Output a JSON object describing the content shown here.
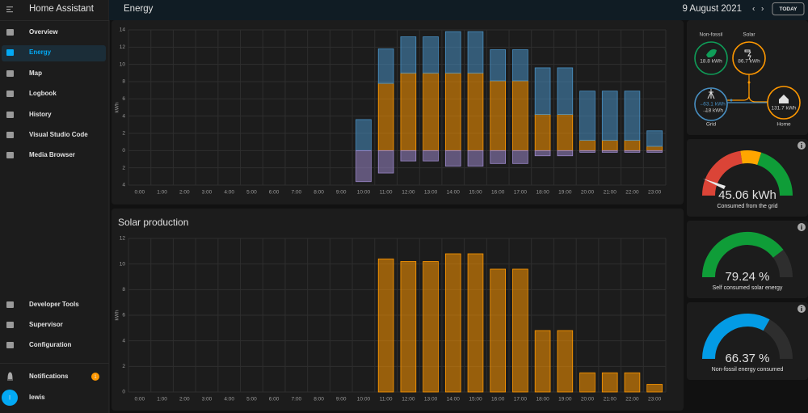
{
  "sidebar": {
    "title": "Home Assistant",
    "items": [
      "Overview",
      "Energy",
      "Map",
      "Logbook",
      "History",
      "Visual Studio Code",
      "Media Browser"
    ],
    "bottom_items": [
      "Developer Tools",
      "Supervisor",
      "Configuration"
    ],
    "notifications": "Notifications",
    "notification_count": 1,
    "user": "lewis",
    "avatar": "l"
  },
  "header": {
    "title": "Energy",
    "date": "9 August 2021",
    "today_button": "TODAY"
  },
  "usage_chart": {
    "type": "bar",
    "stacked": true,
    "y_label": "kWh",
    "categories": [
      "0:00",
      "1:00",
      "2:00",
      "3:00",
      "4:00",
      "5:00",
      "6:00",
      "7:00",
      "8:00",
      "9:00",
      "10:00",
      "11:00",
      "12:00",
      "13:00",
      "14:00",
      "15:00",
      "16:00",
      "17:00",
      "18:00",
      "19:00",
      "20:00",
      "21:00",
      "22:00",
      "23:00"
    ],
    "series": [
      {
        "color": "#ff9800",
        "values": [
          0,
          0,
          0,
          0,
          0,
          0,
          0,
          0,
          0,
          0,
          0,
          7.8,
          9.0,
          9.0,
          9.0,
          9.0,
          8.1,
          8.1,
          4.2,
          4.2,
          1.2,
          1.2,
          1.2,
          0.5
        ]
      },
      {
        "color": "#488fc2",
        "values": [
          0,
          0,
          0,
          0,
          0,
          0,
          0,
          0,
          0,
          0,
          3.6,
          4.0,
          4.2,
          4.2,
          4.8,
          4.8,
          3.6,
          3.6,
          5.4,
          5.4,
          5.7,
          5.7,
          5.7,
          1.8
        ]
      },
      {
        "color": "#9b87c9",
        "values": [
          0,
          0,
          0,
          0,
          0,
          0,
          0,
          0,
          0,
          0,
          -3.6,
          -2.6,
          -1.2,
          -1.2,
          -1.8,
          -1.8,
          -1.5,
          -1.5,
          -0.6,
          -0.6,
          -0.2,
          -0.2,
          -0.2,
          -0.2
        ]
      }
    ],
    "ylim": [
      -4,
      14
    ],
    "yticks": [
      14,
      12,
      10,
      8,
      6,
      4,
      2,
      0,
      {
        "value": -2,
        "label": "2"
      },
      {
        "value": -4,
        "label": "4"
      }
    ],
    "grid": true
  },
  "solar_chart": {
    "type": "bar",
    "title": "Solar production",
    "y_label": "kWh",
    "categories": [
      "0:00",
      "1:00",
      "2:00",
      "3:00",
      "4:00",
      "5:00",
      "6:00",
      "7:00",
      "8:00",
      "9:00",
      "10:00",
      "11:00",
      "12:00",
      "13:00",
      "14:00",
      "15:00",
      "16:00",
      "17:00",
      "18:00",
      "19:00",
      "20:00",
      "21:00",
      "22:00",
      "23:00"
    ],
    "series": [
      {
        "color": "#ff9800",
        "values": [
          0,
          0,
          0,
          0,
          0,
          0,
          0,
          0,
          0,
          0,
          0,
          10.4,
          10.2,
          10.2,
          10.8,
          10.8,
          9.6,
          9.6,
          4.8,
          4.8,
          1.5,
          1.5,
          1.5,
          0.6
        ]
      }
    ],
    "ylim": [
      0,
      12
    ],
    "yticks": [
      0,
      2,
      4,
      6,
      8,
      10,
      12
    ],
    "grid": true
  },
  "distribution": {
    "non_fossil": {
      "label": "Non-fossil",
      "value": "18.8 kWh"
    },
    "solar": {
      "label": "Solar",
      "value": "86.7 kWh"
    },
    "grid": {
      "label": "Grid",
      "consumed": "63.1 kWh",
      "returned": "18 kWh"
    },
    "home": {
      "label": "Home",
      "value": "131.7 kWh"
    }
  },
  "gauges": [
    {
      "type": "sector",
      "value": 45.06,
      "value_label": "45.06 kWh",
      "label": "Consumed from the grid"
    },
    {
      "type": "gauge",
      "value": 79.24,
      "value_label": "79.24 %",
      "label": "Self consumed solar energy",
      "color": "#0f9d38",
      "range": [
        0,
        100
      ]
    },
    {
      "type": "gauge",
      "value": 66.37,
      "value_label": "66.37 %",
      "label": "Non-fossil energy consumed",
      "color": "#039be5",
      "range": [
        0,
        100
      ]
    }
  ]
}
